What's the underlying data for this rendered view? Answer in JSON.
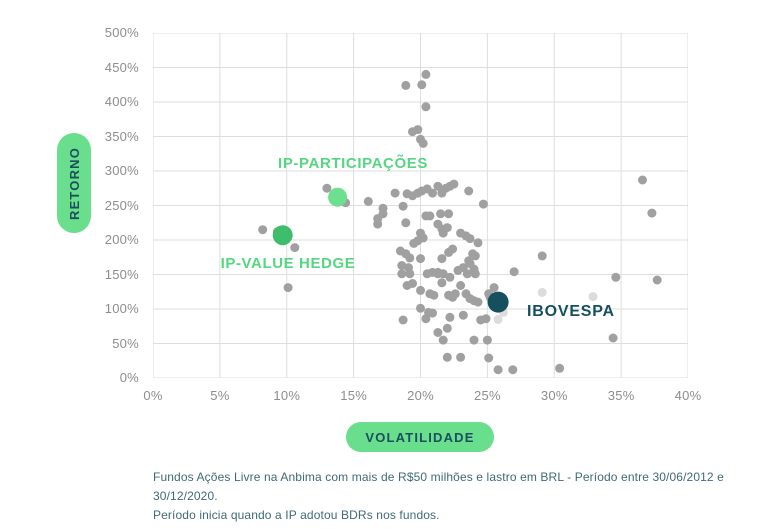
{
  "theme": {
    "accent_green": "#69DE8C",
    "label_green": "#55D680",
    "navy": "#1B4F5E",
    "grid": "#DEDEDE",
    "tick_gray": "#8D8D8D",
    "footnote_teal": "#3F6A77"
  },
  "chart_data": {
    "type": "scatter",
    "xlabel": "VOLATILIDADE",
    "ylabel": "RETORNO",
    "xlim": [
      0,
      40
    ],
    "ylim": [
      0,
      500
    ],
    "x_ticks": [
      0,
      5,
      10,
      15,
      20,
      25,
      30,
      35,
      40
    ],
    "y_ticks": [
      0,
      50,
      100,
      150,
      200,
      250,
      300,
      350,
      400,
      450,
      500
    ],
    "tick_suffix": "%",
    "grid": true,
    "labels": {
      "participacoes": "IP-PARTICIPAÇÕES",
      "value_hedge": "IP-VALUE HEDGE",
      "ibovespa": "IBOVESPA"
    },
    "series": [
      {
        "name": "fundos",
        "color": "#A0A0A0",
        "radius": 4.5,
        "points": [
          [
            20.4,
            440
          ],
          [
            18.9,
            424
          ],
          [
            20.1,
            425
          ],
          [
            20.4,
            393
          ],
          [
            19.4,
            357
          ],
          [
            19.8,
            360
          ],
          [
            20.0,
            346
          ],
          [
            20.2,
            340
          ],
          [
            13.0,
            275
          ],
          [
            14.4,
            254
          ],
          [
            16.1,
            256
          ],
          [
            17.2,
            246
          ],
          [
            18.1,
            268
          ],
          [
            19.0,
            267
          ],
          [
            19.4,
            264
          ],
          [
            19.8,
            268
          ],
          [
            20.1,
            271
          ],
          [
            20.5,
            274
          ],
          [
            20.9,
            268
          ],
          [
            21.3,
            278
          ],
          [
            21.6,
            268
          ],
          [
            21.9,
            275
          ],
          [
            22.2,
            278
          ],
          [
            22.5,
            281
          ],
          [
            23.6,
            271
          ],
          [
            18.7,
            249
          ],
          [
            24.7,
            252
          ],
          [
            16.8,
            231
          ],
          [
            16.8,
            223
          ],
          [
            17.2,
            238
          ],
          [
            18.9,
            225
          ],
          [
            20.4,
            235
          ],
          [
            20.7,
            235
          ],
          [
            21.5,
            238
          ],
          [
            22.1,
            238
          ],
          [
            21.3,
            223
          ],
          [
            21.6,
            216
          ],
          [
            22.0,
            218
          ],
          [
            20.0,
            210
          ],
          [
            20.2,
            203
          ],
          [
            19.8,
            199
          ],
          [
            19.5,
            195
          ],
          [
            23.0,
            210
          ],
          [
            23.4,
            206
          ],
          [
            23.7,
            202
          ],
          [
            24.3,
            196
          ],
          [
            21.7,
            210
          ],
          [
            18.5,
            184
          ],
          [
            18.9,
            180
          ],
          [
            19.2,
            174
          ],
          [
            20.0,
            173
          ],
          [
            18.6,
            163
          ],
          [
            19.1,
            160
          ],
          [
            21.6,
            173
          ],
          [
            22.1,
            182
          ],
          [
            22.4,
            187
          ],
          [
            22.8,
            156
          ],
          [
            23.2,
            160
          ],
          [
            23.7,
            166
          ],
          [
            24.0,
            158
          ],
          [
            21.3,
            153
          ],
          [
            21.7,
            151
          ],
          [
            22.2,
            146
          ],
          [
            23.9,
            180
          ],
          [
            24.1,
            177
          ],
          [
            23.6,
            170
          ],
          [
            23.5,
            151
          ],
          [
            24.1,
            151
          ],
          [
            27.0,
            154
          ],
          [
            29.1,
            177
          ],
          [
            18.6,
            151
          ],
          [
            19.2,
            151
          ],
          [
            20.5,
            151
          ],
          [
            20.9,
            153
          ],
          [
            21.3,
            151
          ],
          [
            19.0,
            134
          ],
          [
            19.4,
            137
          ],
          [
            20.0,
            127
          ],
          [
            20.7,
            122
          ],
          [
            21.0,
            120
          ],
          [
            21.6,
            138
          ],
          [
            22.1,
            120
          ],
          [
            22.4,
            117
          ],
          [
            22.6,
            122
          ],
          [
            23.0,
            134
          ],
          [
            23.4,
            122
          ],
          [
            23.7,
            115
          ],
          [
            24.0,
            112
          ],
          [
            24.3,
            110
          ],
          [
            25.1,
            122
          ],
          [
            25.2,
            117
          ],
          [
            25.5,
            131
          ],
          [
            20.0,
            101
          ],
          [
            20.6,
            95
          ],
          [
            20.9,
            94
          ],
          [
            18.7,
            84
          ],
          [
            20.4,
            86
          ],
          [
            22.2,
            88
          ],
          [
            23.2,
            91
          ],
          [
            24.5,
            84
          ],
          [
            24.9,
            86
          ],
          [
            21.3,
            66
          ],
          [
            22.0,
            72
          ],
          [
            21.7,
            55
          ],
          [
            24.0,
            55
          ],
          [
            25.0,
            55
          ],
          [
            22.0,
            30
          ],
          [
            23.0,
            30
          ],
          [
            25.1,
            29
          ],
          [
            25.8,
            12
          ],
          [
            26.9,
            12
          ],
          [
            8.2,
            215
          ],
          [
            9.3,
            212
          ],
          [
            10.6,
            189
          ],
          [
            10.1,
            131
          ],
          [
            36.6,
            287
          ],
          [
            37.3,
            239
          ],
          [
            34.6,
            146
          ],
          [
            37.7,
            142
          ],
          [
            34.4,
            58
          ],
          [
            30.4,
            14
          ]
        ]
      },
      {
        "name": "fundos-faded",
        "color": "#DCDCDC",
        "radius": 4.5,
        "points": [
          [
            29.1,
            124
          ],
          [
            32.9,
            118
          ],
          [
            26.2,
            95
          ],
          [
            25.8,
            85
          ]
        ]
      },
      {
        "name": "ip-participacoes",
        "color": "#6CE08E",
        "radius": 9.5,
        "points": [
          [
            13.8,
            262
          ]
        ]
      },
      {
        "name": "ip-value-hedge",
        "color": "#3EBE6A",
        "radius": 10,
        "points": [
          [
            9.7,
            207
          ]
        ]
      },
      {
        "name": "ibovespa",
        "color": "#16505F",
        "radius": 10.5,
        "points": [
          [
            25.8,
            110
          ]
        ]
      }
    ]
  },
  "footnote": {
    "line1": "Fundos Ações Livre na Anbima com mais de R$50 milhões e lastro em BRL - Período entre 30/06/2012 e 30/12/2020.",
    "line2": "Período inicia quando a IP adotou BDRs nos fundos."
  }
}
